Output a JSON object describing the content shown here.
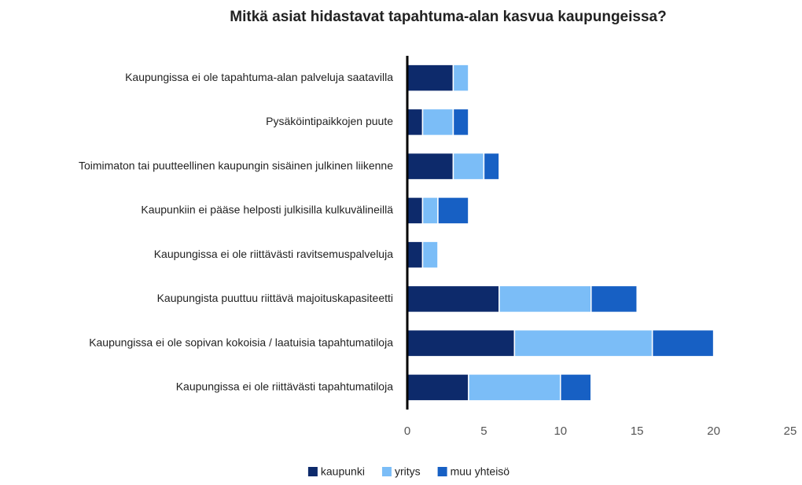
{
  "chart_data": {
    "type": "stacked_barh",
    "title": "Mitkä asiat hidastavat tapahtuma-alan kasvua kaupungeissa?",
    "categories": [
      "Kaupungissa ei ole tapahtuma-alan palveluja saatavilla",
      "Pysäköintipaikkojen puute",
      "Toimimaton tai puutteellinen kaupungin sisäinen julkinen liikenne",
      "Kaupunkiin ei pääse helposti julkisilla kulkuvälineillä",
      "Kaupungissa ei ole riittävästi ravitsemuspalveluja",
      "Kaupungista puuttuu riittävä majoituskapasiteetti",
      "Kaupungissa ei ole sopivan kokoisia / laatuisia tapahtumatiloja",
      "Kaupungissa ei ole riittävästi tapahtumatiloja"
    ],
    "series": [
      {
        "name": "kaupunki",
        "color": "#0d2a6b",
        "values": [
          3,
          1,
          3,
          1,
          1,
          6,
          7,
          4
        ]
      },
      {
        "name": "yritys",
        "color": "#7bbdf7",
        "values": [
          1,
          2,
          2,
          1,
          1,
          6,
          9,
          6
        ]
      },
      {
        "name": "muu yhteisö",
        "color": "#1760c4",
        "values": [
          0,
          1,
          1,
          2,
          0,
          3,
          4,
          2
        ]
      }
    ],
    "xlim": [
      0,
      25
    ],
    "xticks": [
      0,
      5,
      10,
      15,
      20,
      25
    ],
    "grid": false,
    "legend": "bottom"
  }
}
